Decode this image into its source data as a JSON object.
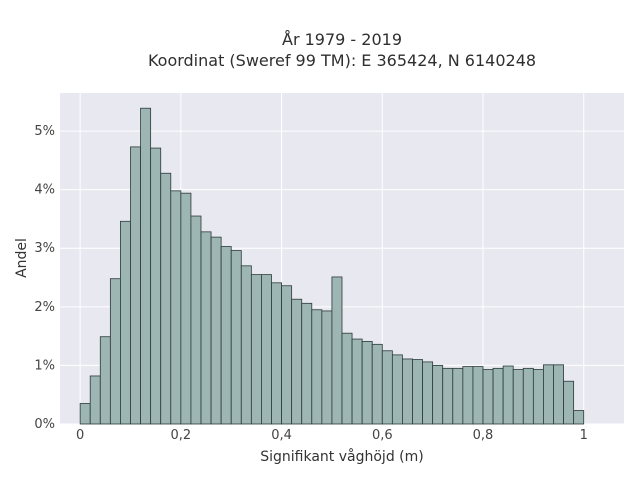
{
  "chart_data": {
    "type": "bar",
    "title_line1": "År 1979 - 2019",
    "title_line2": "Koordinat (Sweref 99 TM): E 365424, N 6140248",
    "xlabel": "Signifikant våghöjd (m)",
    "ylabel": "Andel",
    "xlim": [
      -0.04,
      1.08
    ],
    "ylim": [
      0,
      0.0565
    ],
    "x_ticks": [
      {
        "value": 0,
        "label": "0"
      },
      {
        "value": 0.2,
        "label": "0,2"
      },
      {
        "value": 0.4,
        "label": "0,4"
      },
      {
        "value": 0.6,
        "label": "0,6"
      },
      {
        "value": 0.8,
        "label": "0,8"
      },
      {
        "value": 1.0,
        "label": "1"
      }
    ],
    "y_ticks": [
      {
        "value": 0,
        "label": "0%"
      },
      {
        "value": 0.01,
        "label": "1%"
      },
      {
        "value": 0.02,
        "label": "2%"
      },
      {
        "value": 0.03,
        "label": "3%"
      },
      {
        "value": 0.04,
        "label": "4%"
      },
      {
        "value": 0.05,
        "label": "5%"
      }
    ],
    "grid": true,
    "bin_width": 0.02,
    "bin_start": 0.0,
    "values": [
      0.0035,
      0.0082,
      0.0149,
      0.0248,
      0.0346,
      0.0473,
      0.0539,
      0.0471,
      0.0428,
      0.0398,
      0.0394,
      0.0355,
      0.0328,
      0.0319,
      0.0303,
      0.0296,
      0.027,
      0.0255,
      0.0255,
      0.0241,
      0.0236,
      0.0213,
      0.0206,
      0.0195,
      0.0193,
      0.0251,
      0.0155,
      0.0145,
      0.0141,
      0.0136,
      0.0125,
      0.0118,
      0.0111,
      0.011,
      0.0106,
      0.01,
      0.0095,
      0.0095,
      0.0098,
      0.0098,
      0.0093,
      0.0095,
      0.0099,
      0.0093,
      0.0095,
      0.0093,
      0.0101,
      0.0101,
      0.0073,
      0.0023
    ]
  },
  "colors": {
    "plot_bg": "#e8e8f0",
    "grid": "#ffffff",
    "bar_fill": "#9db5b3",
    "bar_stroke": "#2b3b39"
  }
}
